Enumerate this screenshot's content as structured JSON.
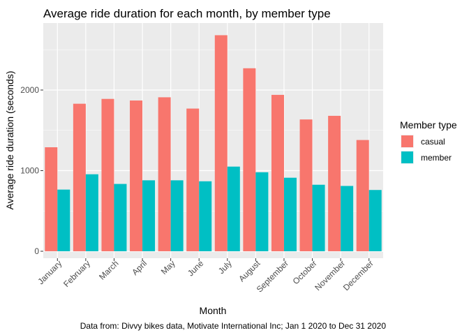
{
  "chart_data": {
    "type": "bar",
    "title": "Average ride duration for each month, by member type",
    "xlabel": "Month",
    "ylabel": "Average ride duration (seconds)",
    "caption": "Data from: Divvy bikes data, Motivate International Inc; Jan 1 2020 to Dec 31 2020",
    "categories": [
      "January",
      "February",
      "March",
      "April",
      "May",
      "June",
      "July",
      "August",
      "September",
      "October",
      "November",
      "December"
    ],
    "series": [
      {
        "name": "casual",
        "color": "#F8766D",
        "values": [
          1290,
          1830,
          1890,
          1870,
          1910,
          1770,
          2680,
          2270,
          1940,
          1635,
          1680,
          1380
        ]
      },
      {
        "name": "member",
        "color": "#00BFC4",
        "values": [
          765,
          955,
          835,
          880,
          880,
          868,
          1050,
          980,
          912,
          825,
          810,
          760
        ]
      }
    ],
    "ylim": [
      0,
      2850
    ],
    "yticks": [
      0,
      1000,
      2000
    ],
    "grid": true,
    "panel_color": "#EBEBEB",
    "legend": {
      "title": "Member type",
      "placement": "right"
    }
  }
}
